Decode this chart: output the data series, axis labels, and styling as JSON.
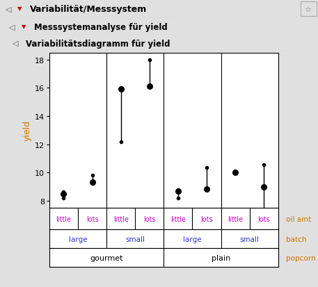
{
  "title_main": "Variabilität/Messsystem",
  "title_sub1": "Messsystemanalyse für yield",
  "title_sub2": "Variabilitätsdiagramm für yield",
  "ylabel": "yield",
  "ylim": [
    7.5,
    18.5
  ],
  "yticks": [
    8,
    10,
    12,
    14,
    16,
    18
  ],
  "background_color": "#e0e0e0",
  "plot_bg": "#ffffff",
  "groups": [
    {
      "popcorn": "gourmet",
      "batch": "large",
      "oil": "little",
      "x": 1,
      "mean": 8.5,
      "low": 8.2,
      "high": 8.65
    },
    {
      "popcorn": "gourmet",
      "batch": "large",
      "oil": "lots",
      "x": 2,
      "mean": 9.35,
      "low": 9.25,
      "high": 9.8
    },
    {
      "popcorn": "gourmet",
      "batch": "small",
      "oil": "little",
      "x": 3,
      "mean": 15.9,
      "low": 12.2,
      "high": 16.0
    },
    {
      "popcorn": "gourmet",
      "batch": "small",
      "oil": "lots",
      "x": 4,
      "mean": 16.1,
      "low": 16.05,
      "high": 18.0
    },
    {
      "popcorn": "plain",
      "batch": "large",
      "oil": "little",
      "x": 5,
      "mean": 8.7,
      "low": 8.2,
      "high": 8.8
    },
    {
      "popcorn": "plain",
      "batch": "large",
      "oil": "lots",
      "x": 6,
      "mean": 8.85,
      "low": 8.85,
      "high": 10.35
    },
    {
      "popcorn": "plain",
      "batch": "small",
      "oil": "little",
      "x": 7,
      "mean": 10.0,
      "low": 10.0,
      "high": 10.1
    },
    {
      "popcorn": "plain",
      "batch": "small",
      "oil": "lots",
      "x": 8,
      "mean": 9.0,
      "low": 7.4,
      "high": 10.55
    }
  ],
  "vlines_x": [
    2.5,
    4.5,
    6.5
  ],
  "label_color_oil": "#cc00cc",
  "label_color_batch": "#3333cc",
  "label_color_popcorn": "#000000",
  "label_color_right": "#cc7700",
  "dot_color": "#000000",
  "line_color": "#000000",
  "header1_bg": "#c8c8c8",
  "header2_bg": "#d8d8d8",
  "header3_bg": "#e0e0e0"
}
